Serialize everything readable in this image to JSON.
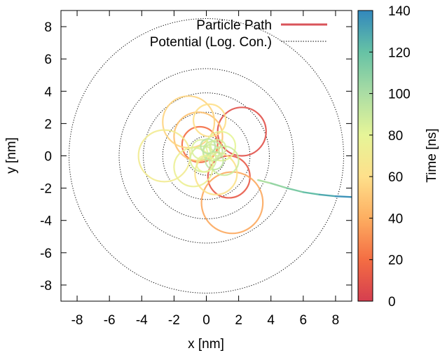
{
  "chart_data": {
    "type": "line",
    "title": "",
    "xlabel": "x [nm]",
    "ylabel": "y [nm]",
    "xlim": [
      -9,
      9
    ],
    "ylim": [
      -9,
      9
    ],
    "xticks": [
      -8,
      -6,
      -4,
      -2,
      0,
      2,
      4,
      6,
      8
    ],
    "yticks": [
      -8,
      -6,
      -4,
      -2,
      0,
      2,
      4,
      6,
      8
    ],
    "grid": false,
    "legend_position": "top-right",
    "legend": [
      {
        "label": "Particle Path",
        "style": "solid",
        "color": "#d9535a"
      },
      {
        "label": "Potential (Log. Con.)",
        "style": "dotted",
        "color": "#000000"
      }
    ],
    "colorbar": {
      "label": "Time [ns]",
      "range": [
        0,
        140
      ],
      "ticks": [
        0,
        20,
        40,
        60,
        80,
        100,
        120,
        140
      ],
      "colormap": [
        "#d53e4f",
        "#f46d43",
        "#fdae61",
        "#fee08b",
        "#e6f598",
        "#abdda4",
        "#66c2a5",
        "#3288bd"
      ]
    },
    "potential_contours": {
      "center": [
        0,
        0
      ],
      "radii": [
        1.2,
        2.7,
        3.9,
        5.4,
        8.5
      ]
    },
    "particle_path": {
      "time_range": [
        0,
        140
      ],
      "loops": [
        {
          "center": [
            2.2,
            1.5
          ],
          "radius": 1.5,
          "time": 8
        },
        {
          "center": [
            1.4,
            -1.3
          ],
          "radius": 1.3,
          "time": 12
        },
        {
          "center": [
            -0.4,
            0.7
          ],
          "radius": 1.1,
          "time": 20
        },
        {
          "center": [
            1.6,
            -2.9
          ],
          "radius": 1.9,
          "time": 38
        },
        {
          "center": [
            -0.5,
            1.2
          ],
          "radius": 1.5,
          "time": 48
        },
        {
          "center": [
            -1.1,
            2.1
          ],
          "radius": 1.6,
          "time": 55
        },
        {
          "center": [
            0.2,
            2.2
          ],
          "radius": 1.0,
          "time": 60
        },
        {
          "center": [
            0.6,
            -1.1
          ],
          "radius": 1.3,
          "time": 62
        },
        {
          "center": [
            -2.6,
            0.0
          ],
          "radius": 1.6,
          "time": 70
        },
        {
          "center": [
            -0.8,
            -0.7
          ],
          "radius": 1.2,
          "time": 75
        },
        {
          "center": [
            0.9,
            0.6
          ],
          "radius": 0.9,
          "time": 80
        },
        {
          "center": [
            -0.2,
            -0.2
          ],
          "radius": 0.8,
          "time": 86
        },
        {
          "center": [
            0.4,
            0.3
          ],
          "radius": 0.6,
          "time": 92
        },
        {
          "center": [
            1.1,
            -0.3
          ],
          "radius": 0.9,
          "time": 88
        }
      ],
      "escape_trajectory": {
        "x": [
          3.2,
          4.0,
          5.0,
          6.0,
          7.0,
          8.0,
          9.0
        ],
        "y": [
          -1.5,
          -1.7,
          -2.0,
          -2.25,
          -2.4,
          -2.5,
          -2.55
        ],
        "time_range": [
          95,
          140
        ]
      }
    }
  }
}
